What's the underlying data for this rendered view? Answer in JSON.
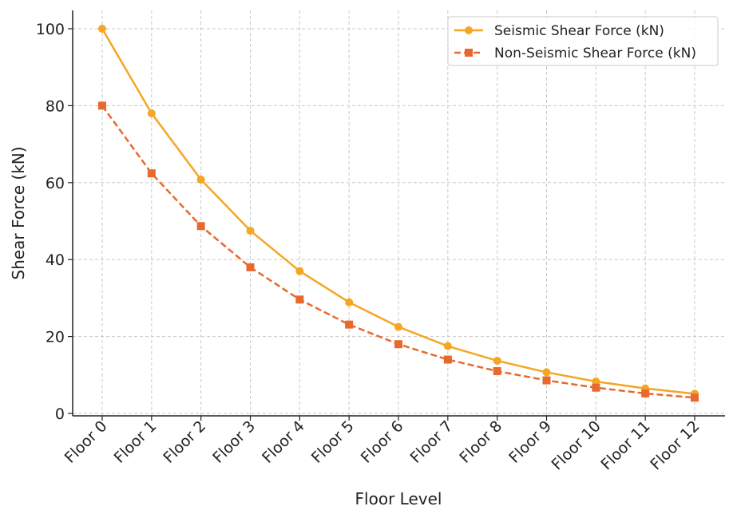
{
  "chart_data": {
    "type": "line",
    "title": "",
    "xlabel": "Floor Level",
    "ylabel": "Shear Force (kN)",
    "categories": [
      "Floor 0",
      "Floor 1",
      "Floor 2",
      "Floor 3",
      "Floor 4",
      "Floor 5",
      "Floor 6",
      "Floor 7",
      "Floor 8",
      "Floor 9",
      "Floor 10",
      "Floor 11",
      "Floor 12"
    ],
    "ylim": [
      0,
      105
    ],
    "yticks": [
      0,
      20,
      40,
      60,
      80,
      100
    ],
    "grid": true,
    "legend_position": "top-right",
    "series": [
      {
        "name": "Seismic Shear Force (kN)",
        "color": "#f5a623",
        "marker": "circle",
        "line_style": "solid",
        "values": [
          100,
          78,
          60.8,
          47.5,
          37,
          28.9,
          22.5,
          17.5,
          13.7,
          10.7,
          8.3,
          6.5,
          5.1
        ]
      },
      {
        "name": "Non-Seismic Shear Force (kN)",
        "color": "#e8692e",
        "marker": "square",
        "line_style": "dashed",
        "values": [
          80,
          62.4,
          48.7,
          38,
          29.6,
          23.1,
          18,
          14,
          11,
          8.6,
          6.7,
          5.2,
          4.1
        ]
      }
    ]
  }
}
